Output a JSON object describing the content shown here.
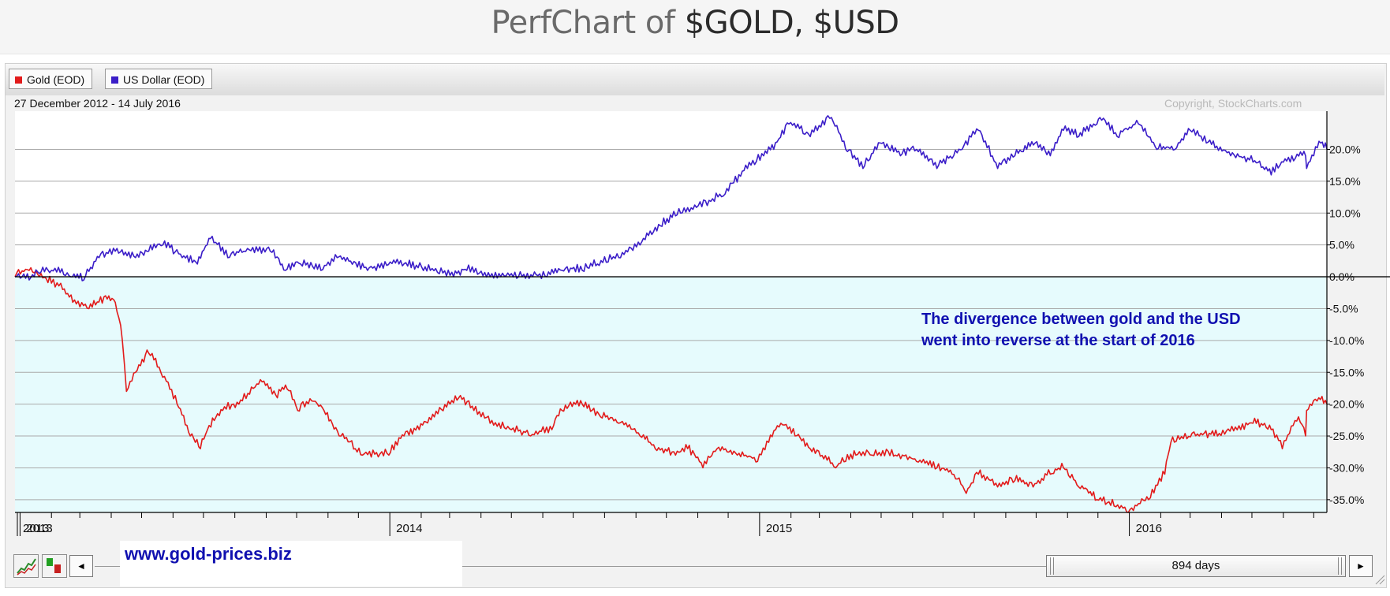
{
  "header": {
    "title_prefix": "PerfChart of ",
    "title_symbols": "$GOLD, $USD"
  },
  "legend": {
    "items": [
      {
        "label": "Gold (EOD)",
        "color": "#e21b1b"
      },
      {
        "label": "US Dollar (EOD)",
        "color": "#3b1ec8"
      }
    ]
  },
  "date_range": "27 December 2012 - 14 July 2016",
  "copyright": "Copyright, StockCharts.com",
  "annotation": "The divergence between gold and the USD went into reverse at the start of 2016",
  "watermark": "www.gold-prices.biz",
  "controls": {
    "span_label": "894 days",
    "left_arrow": "◄",
    "right_arrow": "►"
  },
  "colors": {
    "gold_line": "#e21b1b",
    "usd_line": "#3b1ec8",
    "background_shade": "#e6fbfd",
    "annotation_text": "#1010b0"
  },
  "chart_data": {
    "type": "line",
    "title": "PerfChart of $GOLD, $USD",
    "x_range": [
      "2012-12-27",
      "2016-07-14"
    ],
    "x_tick_labels": [
      "2013",
      "2014",
      "2015",
      "2016"
    ],
    "y_unit": "% change",
    "y_range": [
      -37,
      26
    ],
    "y_ticks": [
      20,
      15,
      10,
      5,
      0,
      -5,
      -10,
      -15,
      -20,
      -25,
      -30,
      -35
    ],
    "y_tick_labels": [
      "20.0%",
      "15.0%",
      "10.0%",
      "5.0%",
      "0.0%",
      "-5.0%",
      "-10.0%",
      "-15.0%",
      "-20.0%",
      "-25.0%",
      "-30.0%",
      "-35.0%"
    ],
    "grid": true,
    "legend_position": "top-left",
    "series": [
      {
        "name": "Gold (EOD)",
        "x": [
          "2012-12-27",
          "2013-01-10",
          "2013-01-20",
          "2013-02-01",
          "2013-02-12",
          "2013-02-22",
          "2013-03-10",
          "2013-03-28",
          "2013-04-05",
          "2013-04-12",
          "2013-04-16",
          "2013-04-25",
          "2013-05-08",
          "2013-05-20",
          "2013-06-05",
          "2013-06-18",
          "2013-06-28",
          "2013-07-05",
          "2013-07-20",
          "2013-08-05",
          "2013-08-28",
          "2013-09-12",
          "2013-09-20",
          "2013-10-02",
          "2013-10-16",
          "2013-10-28",
          "2013-11-12",
          "2013-11-28",
          "2013-12-05",
          "2013-12-31",
          "2014-01-15",
          "2014-01-30",
          "2014-02-14",
          "2014-03-10",
          "2014-03-25",
          "2014-04-10",
          "2014-05-01",
          "2014-05-20",
          "2014-06-10",
          "2014-06-20",
          "2014-07-10",
          "2014-07-28",
          "2014-08-15",
          "2014-09-05",
          "2014-09-20",
          "2014-10-10",
          "2014-10-22",
          "2014-11-06",
          "2014-11-20",
          "2014-12-10",
          "2014-12-30",
          "2015-01-10",
          "2015-01-22",
          "2015-02-05",
          "2015-02-20",
          "2015-03-17",
          "2015-04-06",
          "2015-04-22",
          "2015-05-15",
          "2015-06-05",
          "2015-06-25",
          "2015-07-10",
          "2015-07-24",
          "2015-08-05",
          "2015-08-24",
          "2015-09-10",
          "2015-09-28",
          "2015-10-15",
          "2015-10-28",
          "2015-11-12",
          "2015-11-30",
          "2015-12-17",
          "2015-12-31",
          "2016-01-20",
          "2016-02-05",
          "2016-02-11",
          "2016-03-10",
          "2016-03-28",
          "2016-04-20",
          "2016-05-02",
          "2016-05-20",
          "2016-05-31",
          "2016-06-16",
          "2016-06-23",
          "2016-06-24",
          "2016-07-06",
          "2016-07-14"
        ],
        "values": [
          0,
          1,
          0,
          -1,
          -2,
          -4,
          -5,
          -3.5,
          -4,
          -10,
          -18,
          -15,
          -12,
          -15,
          -20,
          -25,
          -27,
          -24,
          -21,
          -20,
          -16.5,
          -19,
          -17,
          -21,
          -19.5,
          -21,
          -25,
          -27,
          -28,
          -28,
          -25,
          -24,
          -22,
          -19,
          -21,
          -23,
          -24,
          -25,
          -24,
          -21,
          -20,
          -22,
          -23,
          -25,
          -27,
          -28,
          -27,
          -30,
          -27,
          -28,
          -29,
          -26,
          -23,
          -25,
          -27,
          -30,
          -28,
          -28,
          -28,
          -29,
          -30,
          -31,
          -34,
          -31,
          -33,
          -32,
          -33,
          -31,
          -30,
          -33,
          -35,
          -36,
          -37,
          -35,
          -31,
          -26,
          -25,
          -25,
          -24,
          -23,
          -24,
          -27,
          -22,
          -25,
          -21,
          -19,
          -20
        ]
      },
      {
        "name": "US Dollar (EOD)",
        "x": [
          "2012-12-27",
          "2013-01-10",
          "2013-01-20",
          "2013-02-01",
          "2013-02-20",
          "2013-03-05",
          "2013-03-20",
          "2013-04-05",
          "2013-04-25",
          "2013-05-08",
          "2013-05-22",
          "2013-06-10",
          "2013-06-25",
          "2013-07-08",
          "2013-07-25",
          "2013-08-10",
          "2013-09-05",
          "2013-09-20",
          "2013-10-05",
          "2013-10-25",
          "2013-11-10",
          "2013-12-10",
          "2014-01-10",
          "2014-02-10",
          "2014-03-05",
          "2014-03-18",
          "2014-04-10",
          "2014-05-08",
          "2014-06-05",
          "2014-06-20",
          "2014-07-10",
          "2014-07-25",
          "2014-08-15",
          "2014-09-05",
          "2014-09-25",
          "2014-10-15",
          "2014-11-05",
          "2014-11-28",
          "2014-12-20",
          "2015-01-05",
          "2015-01-15",
          "2015-01-30",
          "2015-02-20",
          "2015-03-13",
          "2015-03-27",
          "2015-04-13",
          "2015-04-30",
          "2015-05-20",
          "2015-06-05",
          "2015-06-25",
          "2015-07-20",
          "2015-08-05",
          "2015-08-24",
          "2015-09-10",
          "2015-09-30",
          "2015-10-15",
          "2015-10-28",
          "2015-11-12",
          "2015-11-30",
          "2015-12-03",
          "2015-12-20",
          "2016-01-10",
          "2016-01-28",
          "2016-02-15",
          "2016-03-01",
          "2016-03-17",
          "2016-04-10",
          "2016-05-02",
          "2016-05-20",
          "2016-06-01",
          "2016-06-23",
          "2016-06-24",
          "2016-07-08",
          "2016-07-14"
        ],
        "values": [
          0,
          -0.5,
          0.5,
          1,
          0,
          -0.5,
          3,
          4,
          3,
          4,
          5,
          3,
          2,
          6,
          3,
          4,
          4,
          1,
          2,
          1,
          3,
          1,
          2,
          1,
          0,
          1,
          0,
          0,
          0,
          1,
          1,
          2,
          3,
          5,
          8,
          10,
          11,
          13,
          17,
          19,
          20,
          24,
          22,
          25,
          20,
          17,
          21,
          19,
          20,
          17,
          20,
          23,
          17,
          19,
          21,
          19,
          23,
          22,
          24,
          25,
          22,
          24,
          20,
          20,
          23,
          21,
          19,
          18,
          16,
          18,
          19,
          17,
          21,
          20
        ]
      }
    ]
  }
}
